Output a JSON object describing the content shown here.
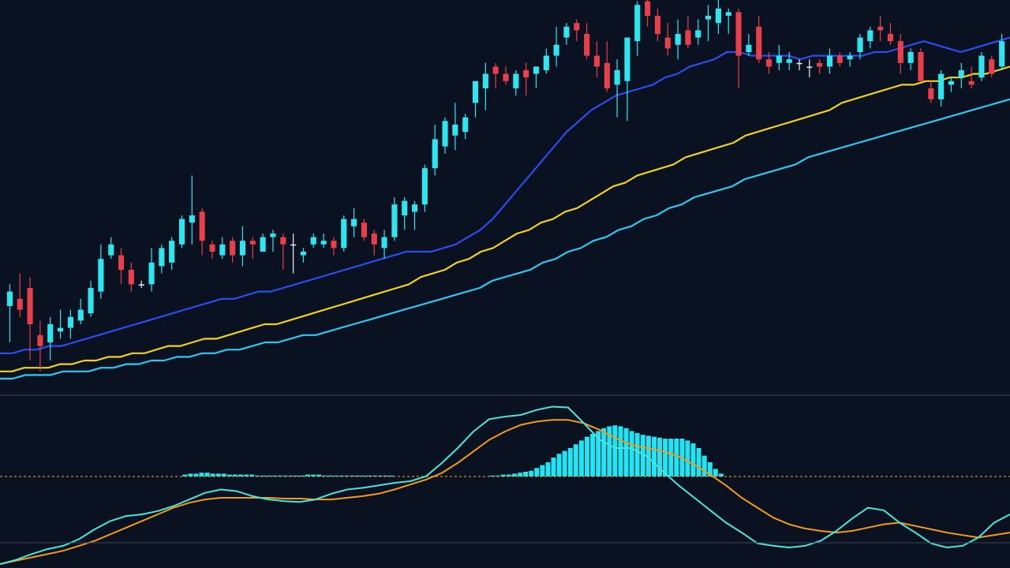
{
  "colors": {
    "background": "#0a1222",
    "bullish": "#2ee6f0",
    "bearish": "#e8404a",
    "doji": "#e8eef5",
    "ma_fast": "#2a4ef0",
    "ma_mid": "#f0d21e",
    "ma_slow": "#2ec8f0",
    "macd_line": "#48e6d8",
    "signal_line": "#f39a1a",
    "histogram": "#1ee6f5",
    "zero_line": "#d89018",
    "separator": "#3a4658"
  },
  "chart_data": [
    {
      "type": "candlestick",
      "panel": "price",
      "ylim": [
        0,
        100
      ],
      "grid": false,
      "candles": [
        {
          "o": 20,
          "h": 26,
          "l": 10,
          "c": 24
        },
        {
          "o": 22,
          "h": 29,
          "l": 17,
          "c": 19
        },
        {
          "o": 25,
          "h": 28,
          "l": 5,
          "c": 15
        },
        {
          "o": 12,
          "h": 16,
          "l": 2,
          "c": 9
        },
        {
          "o": 10,
          "h": 17,
          "l": 5,
          "c": 15
        },
        {
          "o": 13,
          "h": 19,
          "l": 11,
          "c": 14
        },
        {
          "o": 14,
          "h": 19,
          "l": 11,
          "c": 17
        },
        {
          "o": 16,
          "h": 22,
          "l": 15,
          "c": 19
        },
        {
          "o": 18,
          "h": 27,
          "l": 17,
          "c": 25
        },
        {
          "o": 24,
          "h": 37,
          "l": 22,
          "c": 33
        },
        {
          "o": 34,
          "h": 39,
          "l": 33,
          "c": 37
        },
        {
          "o": 34,
          "h": 36,
          "l": 26,
          "c": 30
        },
        {
          "o": 30,
          "h": 32,
          "l": 24,
          "c": 26
        },
        {
          "o": 26,
          "h": 27,
          "l": 25,
          "c": 26
        },
        {
          "o": 26,
          "h": 36,
          "l": 24,
          "c": 32
        },
        {
          "o": 31,
          "h": 37,
          "l": 29,
          "c": 36
        },
        {
          "o": 32,
          "h": 39,
          "l": 30,
          "c": 38
        },
        {
          "o": 37,
          "h": 45,
          "l": 36,
          "c": 44
        },
        {
          "o": 43,
          "h": 56,
          "l": 37,
          "c": 45
        },
        {
          "o": 46,
          "h": 47,
          "l": 34,
          "c": 38
        },
        {
          "o": 37,
          "h": 38,
          "l": 33,
          "c": 35
        },
        {
          "o": 34,
          "h": 39,
          "l": 33,
          "c": 37
        },
        {
          "o": 38,
          "h": 39,
          "l": 32,
          "c": 34
        },
        {
          "o": 34,
          "h": 42,
          "l": 31,
          "c": 38
        },
        {
          "o": 38,
          "h": 39,
          "l": 33,
          "c": 37
        },
        {
          "o": 35,
          "h": 40,
          "l": 35,
          "c": 39
        },
        {
          "o": 39,
          "h": 41,
          "l": 35,
          "c": 40
        },
        {
          "o": 39,
          "h": 40,
          "l": 30,
          "c": 37
        },
        {
          "o": 37,
          "h": 40,
          "l": 29,
          "c": 37
        },
        {
          "o": 34,
          "h": 36,
          "l": 32,
          "c": 35
        },
        {
          "o": 37,
          "h": 40,
          "l": 36,
          "c": 39
        },
        {
          "o": 37,
          "h": 40,
          "l": 36,
          "c": 38
        },
        {
          "o": 38,
          "h": 39,
          "l": 34,
          "c": 36
        },
        {
          "o": 36,
          "h": 45,
          "l": 35,
          "c": 44
        },
        {
          "o": 42,
          "h": 47,
          "l": 39,
          "c": 44
        },
        {
          "o": 43,
          "h": 44,
          "l": 38,
          "c": 39
        },
        {
          "o": 40,
          "h": 41,
          "l": 34,
          "c": 37
        },
        {
          "o": 36,
          "h": 41,
          "l": 33,
          "c": 39
        },
        {
          "o": 39,
          "h": 50,
          "l": 38,
          "c": 48
        },
        {
          "o": 45,
          "h": 50,
          "l": 41,
          "c": 49
        },
        {
          "o": 46,
          "h": 49,
          "l": 41,
          "c": 48
        },
        {
          "o": 48,
          "h": 59,
          "l": 46,
          "c": 58
        },
        {
          "o": 58,
          "h": 70,
          "l": 56,
          "c": 66
        },
        {
          "o": 64,
          "h": 72,
          "l": 62,
          "c": 71
        },
        {
          "o": 67,
          "h": 76,
          "l": 63,
          "c": 70
        },
        {
          "o": 68,
          "h": 73,
          "l": 66,
          "c": 72
        },
        {
          "o": 76,
          "h": 81,
          "l": 72,
          "c": 82
        },
        {
          "o": 80,
          "h": 87,
          "l": 74,
          "c": 84
        },
        {
          "o": 86,
          "h": 87,
          "l": 80,
          "c": 84
        },
        {
          "o": 84,
          "h": 86,
          "l": 81,
          "c": 82
        },
        {
          "o": 80,
          "h": 85,
          "l": 78,
          "c": 84
        },
        {
          "o": 85,
          "h": 87,
          "l": 78,
          "c": 83
        },
        {
          "o": 84,
          "h": 86,
          "l": 80,
          "c": 86
        },
        {
          "o": 85,
          "h": 91,
          "l": 84,
          "c": 89
        },
        {
          "o": 89,
          "h": 97,
          "l": 86,
          "c": 92
        },
        {
          "o": 94,
          "h": 98,
          "l": 92,
          "c": 97
        },
        {
          "o": 98,
          "h": 99,
          "l": 93,
          "c": 96
        },
        {
          "o": 95,
          "h": 98,
          "l": 88,
          "c": 89
        },
        {
          "o": 89,
          "h": 93,
          "l": 83,
          "c": 86
        },
        {
          "o": 87,
          "h": 93,
          "l": 79,
          "c": 80
        },
        {
          "o": 81,
          "h": 88,
          "l": 72,
          "c": 85
        },
        {
          "o": 82,
          "h": 93,
          "l": 71,
          "c": 94
        },
        {
          "o": 93,
          "h": 104,
          "l": 89,
          "c": 103
        },
        {
          "o": 104,
          "h": 106,
          "l": 97,
          "c": 100
        },
        {
          "o": 100,
          "h": 102,
          "l": 93,
          "c": 95
        },
        {
          "o": 94,
          "h": 98,
          "l": 89,
          "c": 91
        },
        {
          "o": 92,
          "h": 99,
          "l": 88,
          "c": 95
        },
        {
          "o": 96,
          "h": 100,
          "l": 91,
          "c": 92
        },
        {
          "o": 94,
          "h": 99,
          "l": 92,
          "c": 96
        },
        {
          "o": 99,
          "h": 103,
          "l": 93,
          "c": 100
        },
        {
          "o": 98,
          "h": 105,
          "l": 95,
          "c": 102
        },
        {
          "o": 100,
          "h": 102,
          "l": 95,
          "c": 101
        },
        {
          "o": 101,
          "h": 102,
          "l": 80,
          "c": 89
        },
        {
          "o": 90,
          "h": 95,
          "l": 89,
          "c": 92
        },
        {
          "o": 97,
          "h": 100,
          "l": 87,
          "c": 88
        },
        {
          "o": 88,
          "h": 90,
          "l": 84,
          "c": 86
        },
        {
          "o": 87,
          "h": 92,
          "l": 85,
          "c": 89
        },
        {
          "o": 87,
          "h": 90,
          "l": 85,
          "c": 88
        },
        {
          "o": 87,
          "h": 88,
          "l": 85,
          "c": 87
        },
        {
          "o": 86,
          "h": 88,
          "l": 83,
          "c": 86
        },
        {
          "o": 87,
          "h": 88,
          "l": 84,
          "c": 86
        },
        {
          "o": 86,
          "h": 91,
          "l": 84,
          "c": 89
        },
        {
          "o": 89,
          "h": 90,
          "l": 86,
          "c": 87
        },
        {
          "o": 88,
          "h": 90,
          "l": 86,
          "c": 89
        },
        {
          "o": 90,
          "h": 95,
          "l": 88,
          "c": 94
        },
        {
          "o": 93,
          "h": 97,
          "l": 91,
          "c": 96
        },
        {
          "o": 97,
          "h": 100,
          "l": 93,
          "c": 96
        },
        {
          "o": 95,
          "h": 98,
          "l": 92,
          "c": 93
        },
        {
          "o": 93,
          "h": 95,
          "l": 84,
          "c": 87
        },
        {
          "o": 87,
          "h": 91,
          "l": 85,
          "c": 90
        },
        {
          "o": 90,
          "h": 91,
          "l": 82,
          "c": 82
        },
        {
          "o": 80,
          "h": 82,
          "l": 76,
          "c": 77
        },
        {
          "o": 77,
          "h": 85,
          "l": 75,
          "c": 84
        },
        {
          "o": 81,
          "h": 83,
          "l": 79,
          "c": 82
        },
        {
          "o": 83,
          "h": 87,
          "l": 80,
          "c": 85
        },
        {
          "o": 82,
          "h": 86,
          "l": 80,
          "c": 81
        },
        {
          "o": 83,
          "h": 90,
          "l": 82,
          "c": 89
        },
        {
          "o": 88,
          "h": 89,
          "l": 83,
          "c": 84
        },
        {
          "o": 86,
          "h": 95,
          "l": 85,
          "c": 93
        }
      ],
      "moving_averages": [
        {
          "values": [
            7,
            7,
            8,
            8,
            9,
            9,
            10,
            11,
            12,
            13,
            14,
            15,
            16,
            17,
            18,
            19,
            20,
            21,
            22,
            22,
            23,
            24,
            24,
            25,
            26,
            27,
            28,
            29,
            30,
            31,
            32,
            33,
            34,
            35,
            35,
            35,
            36,
            37,
            39,
            41,
            44,
            48,
            52,
            56,
            60,
            64,
            68,
            71,
            74,
            76,
            78,
            79,
            80,
            81,
            83,
            84,
            86,
            87,
            88,
            90,
            90,
            89,
            89,
            89,
            89,
            88,
            89,
            89,
            89,
            89,
            89,
            90,
            90,
            91,
            92,
            93,
            92,
            91,
            90,
            91,
            92,
            93,
            94
          ]
        },
        {
          "values": [
            2,
            2,
            3,
            3,
            3,
            4,
            4,
            5,
            5,
            6,
            6,
            7,
            7,
            8,
            9,
            9,
            10,
            11,
            11,
            12,
            13,
            14,
            15,
            15,
            16,
            17,
            18,
            19,
            20,
            21,
            22,
            23,
            24,
            25,
            26,
            28,
            29,
            30,
            32,
            33,
            35,
            36,
            38,
            40,
            41,
            43,
            44,
            46,
            47,
            49,
            51,
            53,
            54,
            56,
            57,
            58,
            59,
            61,
            62,
            63,
            64,
            65,
            67,
            68,
            69,
            70,
            71,
            72,
            73,
            74,
            76,
            77,
            78,
            79,
            80,
            81,
            81,
            82,
            82,
            83,
            83,
            84,
            84,
            85,
            86
          ]
        },
        {
          "values": [
            0,
            0,
            1,
            1,
            1,
            2,
            2,
            2,
            3,
            3,
            4,
            4,
            5,
            5,
            6,
            6,
            7,
            7,
            8,
            8,
            9,
            10,
            10,
            11,
            12,
            12,
            13,
            14,
            15,
            16,
            17,
            18,
            19,
            20,
            21,
            22,
            23,
            24,
            25,
            27,
            28,
            29,
            30,
            32,
            33,
            35,
            36,
            38,
            39,
            41,
            42,
            44,
            45,
            47,
            48,
            50,
            51,
            52,
            53,
            55,
            56,
            57,
            58,
            59,
            61,
            62,
            63,
            64,
            65,
            66,
            67,
            68,
            69,
            70,
            71,
            72,
            73,
            74,
            75,
            76,
            77
          ]
        }
      ]
    },
    {
      "type": "macd",
      "panel": "indicator",
      "ylim": [
        -100,
        100
      ],
      "zero_line": true,
      "histogram": [
        0,
        0,
        0,
        0,
        0,
        0,
        0,
        0,
        0,
        0,
        0,
        0,
        0,
        0,
        0,
        0,
        2,
        3,
        3,
        4,
        4,
        3,
        3,
        3,
        2,
        2,
        2,
        2,
        2,
        1,
        1,
        1,
        1,
        1,
        1,
        1,
        1,
        1,
        2,
        2,
        2,
        1,
        1,
        1,
        1,
        1,
        1,
        1,
        1,
        1,
        1,
        1,
        1,
        1,
        0,
        0,
        0,
        0,
        0,
        0,
        0,
        0,
        0,
        0,
        0,
        0,
        0,
        0,
        0,
        0,
        0,
        1,
        1,
        2,
        2,
        3,
        4,
        5,
        6,
        9,
        12,
        15,
        20,
        24,
        27,
        30,
        34,
        38,
        42,
        45,
        48,
        51,
        53,
        54,
        53,
        51,
        48,
        46,
        44,
        43,
        42,
        41,
        40,
        40,
        40,
        40,
        38,
        35,
        30,
        22,
        15,
        8,
        3
      ],
      "macd_line": [
        -100,
        -95,
        -88,
        -82,
        -78,
        -70,
        -58,
        -48,
        -42,
        -40,
        -36,
        -30,
        -22,
        -14,
        -10,
        -12,
        -18,
        -22,
        -24,
        -25,
        -22,
        -15,
        -10,
        -8,
        -5,
        -2,
        0,
        6,
        22,
        40,
        60,
        75,
        78,
        80,
        86,
        90,
        89,
        70,
        50,
        40,
        40,
        30,
        12,
        -5,
        -20,
        -35,
        -50,
        -62,
        -75,
        -78,
        -80,
        -78,
        -72,
        -60,
        -45,
        -32,
        -35,
        -50,
        -62,
        -75,
        -80,
        -78,
        -68,
        -50,
        -40
      ],
      "signal_line": [
        -100,
        -96,
        -92,
        -88,
        -84,
        -78,
        -72,
        -64,
        -56,
        -48,
        -40,
        -32,
        -26,
        -22,
        -20,
        -20,
        -20,
        -20,
        -21,
        -21,
        -22,
        -22,
        -20,
        -18,
        -15,
        -10,
        -4,
        2,
        10,
        22,
        36,
        50,
        60,
        68,
        72,
        74,
        74,
        70,
        62,
        52,
        44,
        40,
        36,
        30,
        20,
        8,
        -5,
        -20,
        -32,
        -44,
        -52,
        -57,
        -60,
        -62,
        -60,
        -56,
        -52,
        -50,
        -54,
        -58,
        -62,
        -65,
        -68,
        -65,
        -62
      ]
    }
  ]
}
